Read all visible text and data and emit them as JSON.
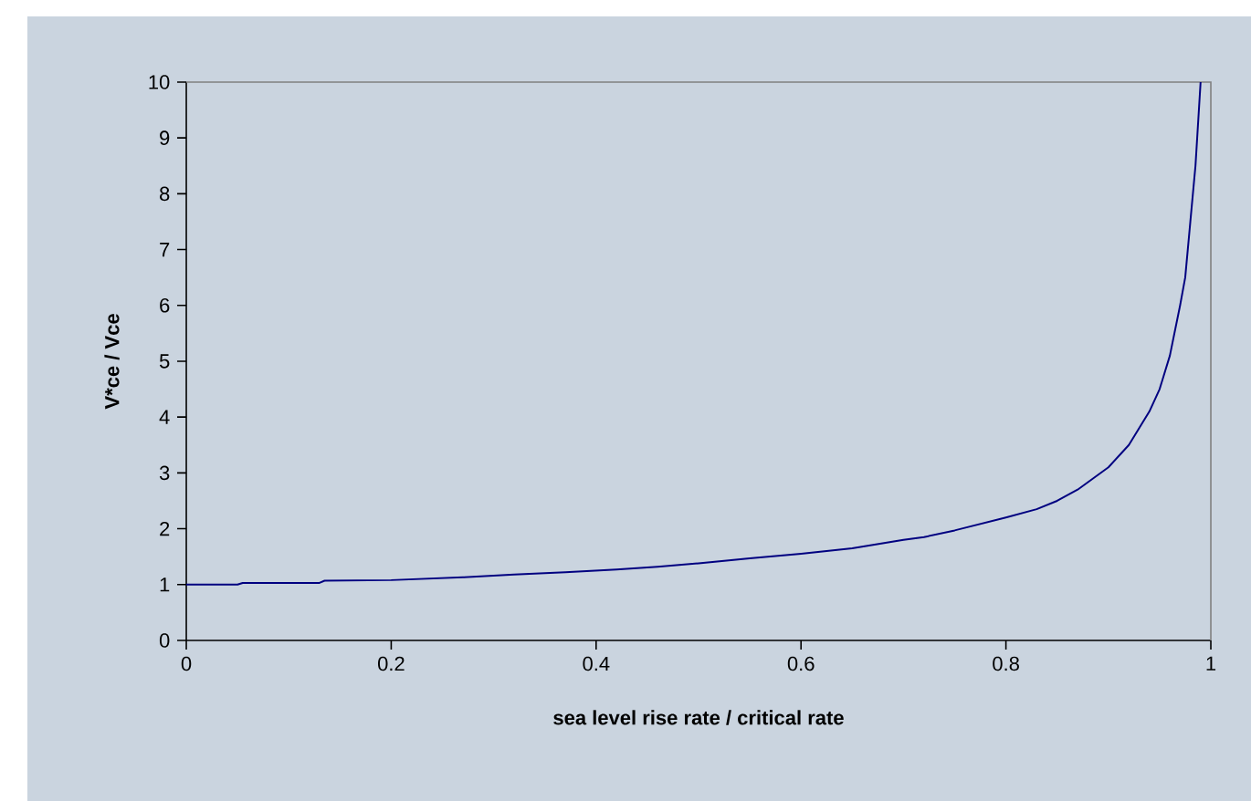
{
  "chart_data": {
    "type": "line",
    "xlabel": "sea level rise rate / critical rate",
    "ylabel": "V*ce / Vce",
    "xlim": [
      0,
      1
    ],
    "xticks": [
      0,
      0.2,
      0.4,
      0.6,
      0.8,
      1
    ],
    "ylim": [
      0,
      10
    ],
    "yticks": [
      0,
      1,
      2,
      3,
      4,
      5,
      6,
      7,
      8,
      9,
      10
    ],
    "marker": "none",
    "line_style": "solid",
    "series": [
      {
        "color": "#000080",
        "x": [
          0,
          0.05,
          0.055,
          0.13,
          0.135,
          0.2,
          0.27,
          0.32,
          0.37,
          0.42,
          0.46,
          0.5,
          0.55,
          0.6,
          0.65,
          0.7,
          0.72,
          0.75,
          0.8,
          0.83,
          0.85,
          0.87,
          0.9,
          0.92,
          0.94,
          0.95,
          0.96,
          0.97,
          0.975,
          0.98,
          0.985,
          0.99
        ],
        "values": [
          1.0,
          1.0,
          1.03,
          1.03,
          1.07,
          1.08,
          1.13,
          1.18,
          1.22,
          1.27,
          1.32,
          1.38,
          1.47,
          1.55,
          1.65,
          1.8,
          1.85,
          1.97,
          2.2,
          2.35,
          2.5,
          2.7,
          3.1,
          3.5,
          4.1,
          4.5,
          5.1,
          6.0,
          6.5,
          7.5,
          8.5,
          10
        ]
      }
    ]
  }
}
